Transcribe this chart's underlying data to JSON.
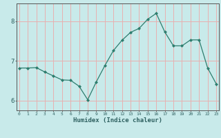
{
  "x": [
    0,
    1,
    2,
    3,
    4,
    5,
    6,
    7,
    8,
    9,
    10,
    11,
    12,
    13,
    14,
    15,
    16,
    17,
    18,
    19,
    20,
    21,
    22,
    23
  ],
  "y": [
    6.82,
    6.82,
    6.83,
    6.72,
    6.62,
    6.52,
    6.51,
    6.36,
    6.02,
    6.47,
    6.88,
    7.26,
    7.52,
    7.72,
    7.82,
    8.05,
    8.2,
    7.73,
    7.38,
    7.38,
    7.53,
    7.53,
    6.82,
    6.42
  ],
  "xlabel": "Humidex (Indice chaleur)",
  "line_color": "#2e7d6e",
  "marker": "D",
  "marker_size": 2.0,
  "bg_color": "#c8eaea",
  "grid_color": "#e8b0b0",
  "axis_color": "#555555",
  "tick_color": "#2e6060",
  "ylim": [
    5.75,
    8.45
  ],
  "yticks": [
    6,
    7,
    8
  ],
  "xticks": [
    0,
    1,
    2,
    3,
    4,
    5,
    6,
    7,
    8,
    9,
    10,
    11,
    12,
    13,
    14,
    15,
    16,
    17,
    18,
    19,
    20,
    21,
    22,
    23
  ]
}
